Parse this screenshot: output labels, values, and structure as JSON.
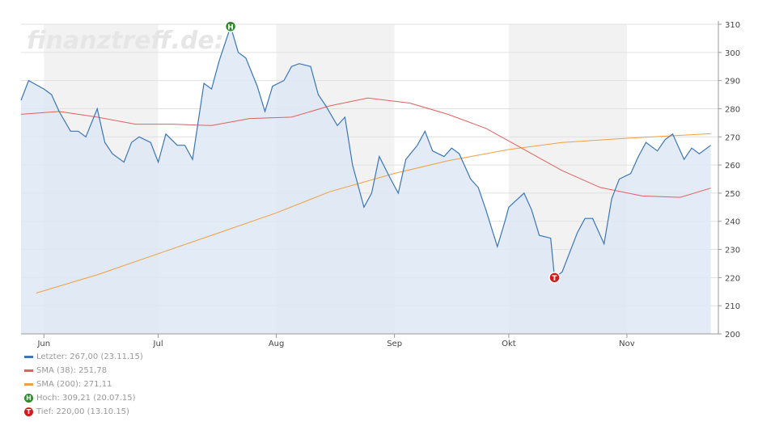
{
  "watermark": "finanztreff.de:",
  "colors": {
    "price": "#3b76b5",
    "price_fill": "#dde8f5",
    "sma38": "#e0605e",
    "sma200": "#f0a040",
    "band": "#f2f2f2",
    "high_badge": "#2f8a2f",
    "low_badge": "#d01c1c"
  },
  "chart_data": {
    "type": "line",
    "ylim": [
      200,
      310
    ],
    "y_ticks": [
      "310",
      "300",
      "290",
      "280",
      "270",
      "260",
      "250",
      "240",
      "230",
      "220",
      "210",
      "200"
    ],
    "x_ticks": [
      "Jun",
      "Jul",
      "Aug",
      "Sep",
      "Okt",
      "Nov"
    ],
    "x_tick_dates": [
      "2015-06-01",
      "2015-07-01",
      "2015-08-01",
      "2015-09-01",
      "2015-10-01",
      "2015-11-01"
    ],
    "x_range": [
      "2015-05-26",
      "2015-11-25"
    ],
    "grid": true,
    "legend_placement": "bottom-left",
    "series": [
      {
        "name": "Letzter",
        "legend_label": "Letzter: 267,00 (23.11.15)",
        "dates": [
          "2015-05-26",
          "2015-05-28",
          "2015-06-01",
          "2015-06-03",
          "2015-06-05",
          "2015-06-08",
          "2015-06-10",
          "2015-06-12",
          "2015-06-15",
          "2015-06-17",
          "2015-06-19",
          "2015-06-22",
          "2015-06-24",
          "2015-06-26",
          "2015-06-29",
          "2015-07-01",
          "2015-07-03",
          "2015-07-06",
          "2015-07-08",
          "2015-07-10",
          "2015-07-13",
          "2015-07-15",
          "2015-07-17",
          "2015-07-20",
          "2015-07-22",
          "2015-07-24",
          "2015-07-27",
          "2015-07-29",
          "2015-07-31",
          "2015-08-03",
          "2015-08-05",
          "2015-08-07",
          "2015-08-10",
          "2015-08-12",
          "2015-08-14",
          "2015-08-17",
          "2015-08-19",
          "2015-08-21",
          "2015-08-24",
          "2015-08-26",
          "2015-08-28",
          "2015-08-31",
          "2015-09-02",
          "2015-09-04",
          "2015-09-07",
          "2015-09-09",
          "2015-09-11",
          "2015-09-14",
          "2015-09-16",
          "2015-09-18",
          "2015-09-21",
          "2015-09-23",
          "2015-09-25",
          "2015-09-28",
          "2015-09-30",
          "2015-10-01",
          "2015-10-05",
          "2015-10-07",
          "2015-10-09",
          "2015-10-12",
          "2015-10-13",
          "2015-10-15",
          "2015-10-19",
          "2015-10-21",
          "2015-10-23",
          "2015-10-26",
          "2015-10-28",
          "2015-10-30",
          "2015-11-02",
          "2015-11-04",
          "2015-11-06",
          "2015-11-09",
          "2015-11-11",
          "2015-11-13",
          "2015-11-16",
          "2015-11-18",
          "2015-11-20",
          "2015-11-23"
        ],
        "values": [
          283,
          290,
          287,
          285,
          279,
          272,
          272,
          270,
          280,
          268,
          264,
          261,
          268,
          270,
          268,
          261,
          271,
          267,
          267,
          262,
          289,
          287,
          297,
          309.21,
          300,
          298,
          288,
          279,
          288,
          290,
          295,
          296,
          295,
          285,
          281,
          274,
          277,
          260,
          245,
          250,
          263,
          255,
          250,
          262,
          267,
          272,
          265,
          263,
          266,
          264,
          255,
          252,
          244,
          231,
          240,
          245,
          250,
          244,
          235,
          234,
          220,
          222,
          236,
          241,
          241,
          232,
          248,
          255,
          257,
          263,
          268,
          265,
          269,
          271,
          262,
          266,
          264,
          267
        ],
        "color_key": "price"
      },
      {
        "name": "SMA (38)",
        "legend_label": "SMA (38): 251,78",
        "dates": [
          "2015-05-26",
          "2015-06-05",
          "2015-06-15",
          "2015-06-25",
          "2015-07-05",
          "2015-07-15",
          "2015-07-25",
          "2015-08-05",
          "2015-08-15",
          "2015-08-25",
          "2015-09-05",
          "2015-09-15",
          "2015-09-25",
          "2015-10-05",
          "2015-10-15",
          "2015-10-25",
          "2015-11-05",
          "2015-11-15",
          "2015-11-23"
        ],
        "values": [
          278,
          279,
          277,
          274.5,
          274.5,
          274,
          276.5,
          277,
          281,
          283.8,
          282,
          278,
          273,
          265.5,
          258,
          252,
          249,
          248.5,
          251.78
        ],
        "color_key": "sma38"
      },
      {
        "name": "SMA (200)",
        "legend_label": "SMA (200): 271,11",
        "dates": [
          "2015-05-30",
          "2015-06-15",
          "2015-07-01",
          "2015-07-15",
          "2015-08-01",
          "2015-08-15",
          "2015-09-01",
          "2015-09-15",
          "2015-10-01",
          "2015-10-15",
          "2015-11-01",
          "2015-11-23"
        ],
        "values": [
          214.5,
          221,
          228.5,
          235,
          243,
          250.5,
          257,
          261.5,
          265.5,
          268,
          269.5,
          271.11
        ],
        "color_key": "sma200"
      }
    ],
    "annotations": [
      {
        "marker": "H",
        "legend_label": "Hoch: 309,21 (20.07.15)",
        "date": "2015-07-20",
        "value": 309.21,
        "color_key": "high_badge"
      },
      {
        "marker": "T",
        "legend_label": "Tief: 220,00 (13.10.15)",
        "date": "2015-10-13",
        "value": 220.0,
        "color_key": "low_badge"
      }
    ]
  }
}
